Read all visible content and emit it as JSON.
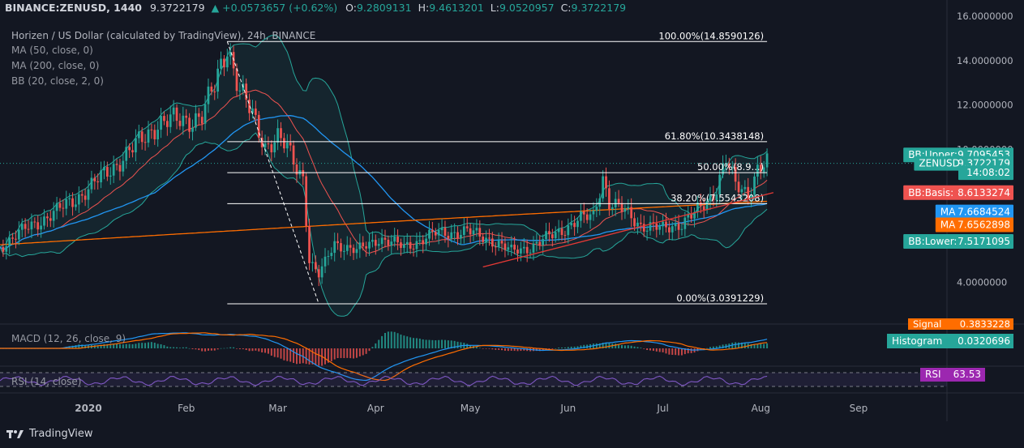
{
  "header": {
    "symbol": "BINANCE:ZENUSD, 1440",
    "last": "9.3722179",
    "change": "▲ +0.0573657 (+0.62%)",
    "o_label": "O:",
    "o": "9.2809131",
    "h_label": "H:",
    "h": "9.4613201",
    "l_label": "L:",
    "l": "9.0520957",
    "c_label": "C:",
    "c": "9.3722179"
  },
  "legend": {
    "title": "Horizen / US Dollar (calculated by TradingView), 24h, BINANCE",
    "ma50": "MA (50, close, 0)",
    "ma200": "MA (200, close, 0)",
    "bb": "BB (20, close, 2, 0)",
    "macd": "MACD (12, 26, close, 9)",
    "rsi": "RSI (14, close)"
  },
  "branding": {
    "name": "TradingView"
  },
  "colors": {
    "background": "#131722",
    "up": "#26a69a",
    "down": "#ef5350",
    "ma50": "#2196f3",
    "ma200": "#ff6d00",
    "bb_basis": "#ef5350",
    "bb_band": "#26a69a",
    "rsi": "#7e57c2",
    "macd": "#2196f3",
    "signal": "#ff6d00",
    "fib_line": "#ffffff",
    "trendline": "#e53935"
  },
  "chart_data": {
    "type": "candlestick",
    "y_axis": {
      "ylim": [
        2.2,
        16.0
      ],
      "ticks": [
        "16.0000000",
        "14.0000000",
        "12.0000000",
        "10.0000000",
        "8.0000000",
        "4.0000000"
      ],
      "tick_values": [
        16,
        14,
        12,
        10,
        8,
        4
      ]
    },
    "x_axis": {
      "labels": [
        "2020",
        "Feb",
        "Mar",
        "Apr",
        "May",
        "Jun",
        "Jul",
        "Aug",
        "Sep"
      ],
      "label_days": [
        0,
        31,
        60,
        91,
        121,
        152,
        182,
        213,
        244
      ],
      "range_days": [
        -28,
        272
      ]
    },
    "anchors": [
      [
        -28,
        5.6
      ],
      [
        -20,
        6.4
      ],
      [
        -10,
        7.2
      ],
      [
        0,
        8.2
      ],
      [
        6,
        9.0
      ],
      [
        14,
        10.0
      ],
      [
        22,
        11.2
      ],
      [
        30,
        11.3
      ],
      [
        36,
        11.5
      ],
      [
        40,
        12.8
      ],
      [
        44,
        14.8
      ],
      [
        48,
        12.6
      ],
      [
        52,
        11.5
      ],
      [
        56,
        10.2
      ],
      [
        60,
        10.5
      ],
      [
        63,
        10.0
      ],
      [
        66,
        9.2
      ],
      [
        68,
        8.8
      ],
      [
        70,
        5.0
      ],
      [
        73,
        4.3
      ],
      [
        78,
        5.8
      ],
      [
        85,
        5.4
      ],
      [
        92,
        6.0
      ],
      [
        100,
        5.6
      ],
      [
        110,
        6.2
      ],
      [
        120,
        6.3
      ],
      [
        128,
        5.9
      ],
      [
        134,
        5.4
      ],
      [
        140,
        5.6
      ],
      [
        148,
        6.2
      ],
      [
        155,
        6.8
      ],
      [
        160,
        7.0
      ],
      [
        163,
        8.8
      ],
      [
        165,
        7.6
      ],
      [
        170,
        7.2
      ],
      [
        175,
        6.6
      ],
      [
        182,
        6.4
      ],
      [
        188,
        6.7
      ],
      [
        194,
        7.3
      ],
      [
        198,
        8.0
      ],
      [
        202,
        9.6
      ],
      [
        205,
        8.3
      ],
      [
        209,
        8.0
      ],
      [
        212,
        9.2
      ],
      [
        215,
        9.37
      ]
    ],
    "series": [
      {
        "name": "ZENUSD",
        "last": 9.3722179
      },
      {
        "name": "MA 50",
        "last": 7.6684524
      },
      {
        "name": "MA 200",
        "last": 7.6562898
      },
      {
        "name": "BB:Upper",
        "last": 9.7095453
      },
      {
        "name": "BB:Basis",
        "last": 8.6133274
      },
      {
        "name": "BB:Lower",
        "last": 7.5171095
      }
    ],
    "price_tags": [
      {
        "label": "BB:Upper",
        "value": "9.7095453",
        "y": 9.75,
        "color": "#26a69a"
      },
      {
        "label": "ZENUSD",
        "value": "9.3722179",
        "y": 9.37,
        "color": "#26a69a"
      },
      {
        "label": "",
        "value": "14:08:02",
        "y": 8.95,
        "color": "#26a69a"
      },
      {
        "label": "BB:Basis",
        "value": "8.6133274",
        "y": 8.05,
        "color": "#ef5350"
      },
      {
        "label": "MA",
        "value": "7.6684524",
        "y": 7.18,
        "color": "#2196f3"
      },
      {
        "label": "MA",
        "value": "7.6562898",
        "y": 6.6,
        "color": "#ff6d00"
      },
      {
        "label": "BB:Lower",
        "value": "7.5171095",
        "y": 5.85,
        "color": "#26a69a"
      }
    ],
    "fibonacci": {
      "start_day": 44,
      "end_day": 215,
      "levels": [
        {
          "label": "100.00%(14.8590126)",
          "value": 14.859
        },
        {
          "label": "61.80%(10.3438148)",
          "value": 10.344
        },
        {
          "label": "50.00%(8.9...)",
          "value": 8.95
        },
        {
          "label": "38.20%(7.5543208)",
          "value": 7.554
        },
        {
          "label": "0.00%(3.0391229)",
          "value": 3.039
        }
      ]
    },
    "diagonal": {
      "from": [
        44,
        14.859
      ],
      "to": [
        73,
        3.039
      ]
    },
    "trendline": {
      "from": [
        125,
        4.7
      ],
      "to": [
        217,
        8.05
      ]
    },
    "macd": {
      "signal_label": "Signal",
      "signal_value": "0.3833228",
      "histogram_label": "Histogram",
      "histogram_value": "0.0320696",
      "range": [
        -1.6,
        1.6
      ]
    },
    "rsi": {
      "label": "RSI",
      "value": "63.53",
      "levels": [
        70,
        30
      ]
    }
  }
}
